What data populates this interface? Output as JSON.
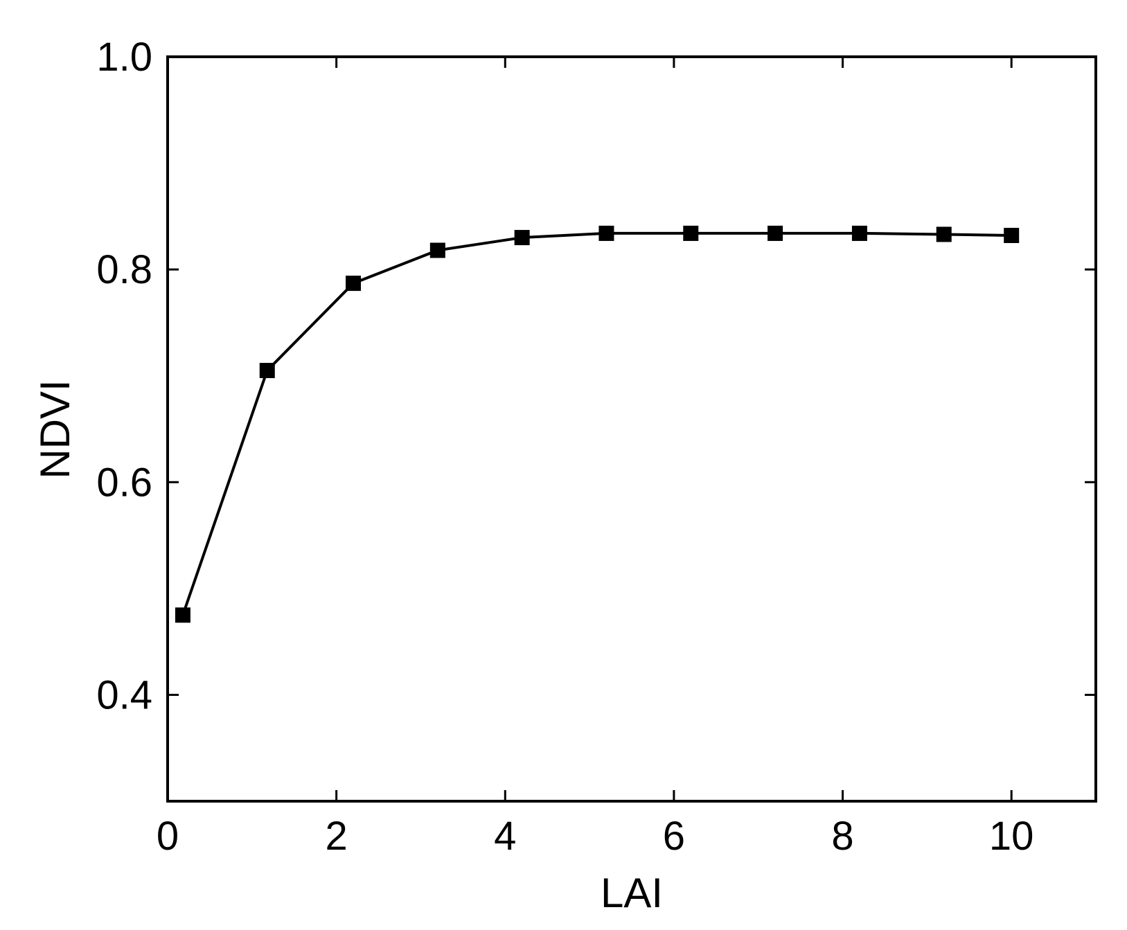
{
  "chart_data": {
    "type": "line",
    "title": "",
    "xlabel": "LAI",
    "ylabel": "NDVI",
    "xlim": [
      0,
      11
    ],
    "ylim": [
      0.3,
      1.0
    ],
    "xticks": [
      0,
      2,
      4,
      6,
      8,
      10
    ],
    "xtick_labels": [
      "0",
      "2",
      "4",
      "6",
      "8",
      "10"
    ],
    "yticks": [
      0.4,
      0.6,
      0.8,
      1.0
    ],
    "ytick_labels": [
      "0.4",
      "0.6",
      "0.8",
      "1.0"
    ],
    "grid": false,
    "marker": "square",
    "series": [
      {
        "x": [
          0.18,
          1.18,
          2.2,
          3.2,
          4.2,
          5.2,
          6.2,
          7.2,
          8.2,
          9.2,
          10.0
        ],
        "y": [
          0.475,
          0.705,
          0.787,
          0.818,
          0.83,
          0.834,
          0.834,
          0.834,
          0.834,
          0.833,
          0.832
        ],
        "color": "#000000"
      }
    ]
  }
}
